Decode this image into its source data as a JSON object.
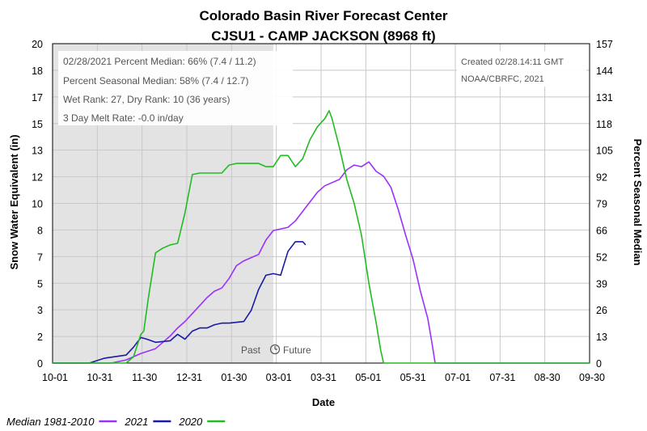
{
  "chart_data": {
    "type": "line",
    "title": "Colorado Basin River Forecast Center",
    "subtitle": "CJSU1 - CAMP JACKSON (8968 ft)",
    "xlabel": "Date",
    "ylabel": "Snow Water Equivalent (in)",
    "y2label": "Percent Seasonal Median",
    "x_ticks": [
      "10-01",
      "10-31",
      "11-30",
      "12-31",
      "01-30",
      "03-01",
      "03-31",
      "05-01",
      "05-31",
      "07-01",
      "07-31",
      "08-30",
      "09-30"
    ],
    "y_ticks": [
      "0",
      "2",
      "3",
      "5",
      "7",
      "8",
      "10",
      "12",
      "13",
      "15",
      "17",
      "18",
      "20"
    ],
    "y2_ticks": [
      "0",
      "13",
      "26",
      "39",
      "52",
      "66",
      "79",
      "92",
      "105",
      "118",
      "131",
      "144",
      "157"
    ],
    "ylim": [
      0,
      20
    ],
    "y2lim": [
      0,
      157
    ],
    "grid": true,
    "shaded_region": "past",
    "past_label": "Past",
    "future_label": "Future",
    "info_lines": [
      "02/28/2021 Percent Median: 66% (7.4 / 11.2)",
      "Percent Seasonal Median: 58% (7.4 / 12.7)",
      "Wet Rank: 27, Dry Rank: 10  (36 years)",
      "3 Day Melt Rate: -0.0 in/day"
    ],
    "created_lines": [
      "Created 02/28.14:11 GMT",
      "NOAA/CBRFC, 2021"
    ],
    "legend": {
      "placement": "bottom-left"
    },
    "series": [
      {
        "name": "Median 1981-2010",
        "color": "#9b30ff",
        "points": [
          [
            0,
            0
          ],
          [
            40,
            0
          ],
          [
            50,
            0.2
          ],
          [
            60,
            0.6
          ],
          [
            70,
            0.9
          ],
          [
            75,
            1.3
          ],
          [
            80,
            1.7
          ],
          [
            85,
            2.2
          ],
          [
            90,
            2.6
          ],
          [
            95,
            3.1
          ],
          [
            100,
            3.6
          ],
          [
            105,
            4.1
          ],
          [
            110,
            4.5
          ],
          [
            115,
            4.7
          ],
          [
            120,
            5.3
          ],
          [
            125,
            6.1
          ],
          [
            130,
            6.4
          ],
          [
            135,
            6.6
          ],
          [
            140,
            6.8
          ],
          [
            145,
            7.7
          ],
          [
            150,
            8.3
          ],
          [
            155,
            8.4
          ],
          [
            160,
            8.5
          ],
          [
            165,
            8.9
          ],
          [
            170,
            9.5
          ],
          [
            175,
            10.1
          ],
          [
            180,
            10.7
          ],
          [
            185,
            11.1
          ],
          [
            190,
            11.3
          ],
          [
            195,
            11.5
          ],
          [
            200,
            12.1
          ],
          [
            205,
            12.4
          ],
          [
            210,
            12.3
          ],
          [
            215,
            12.6
          ],
          [
            220,
            12.0
          ],
          [
            225,
            11.7
          ],
          [
            230,
            11.0
          ],
          [
            235,
            9.6
          ],
          [
            240,
            8.0
          ],
          [
            245,
            6.5
          ],
          [
            250,
            4.5
          ],
          [
            255,
            2.8
          ],
          [
            258,
            1.2
          ],
          [
            260,
            0
          ],
          [
            365,
            0
          ]
        ]
      },
      {
        "name": "2021",
        "color": "#1a1aa6",
        "points": [
          [
            0,
            0
          ],
          [
            25,
            0
          ],
          [
            35,
            0.3
          ],
          [
            50,
            0.5
          ],
          [
            55,
            1.0
          ],
          [
            60,
            1.6
          ],
          [
            64,
            1.5
          ],
          [
            70,
            1.3
          ],
          [
            80,
            1.4
          ],
          [
            85,
            1.8
          ],
          [
            90,
            1.5
          ],
          [
            95,
            2.0
          ],
          [
            100,
            2.2
          ],
          [
            105,
            2.2
          ],
          [
            110,
            2.4
          ],
          [
            115,
            2.5
          ],
          [
            120,
            2.5
          ],
          [
            130,
            2.6
          ],
          [
            135,
            3.3
          ],
          [
            140,
            4.6
          ],
          [
            145,
            5.5
          ],
          [
            150,
            5.6
          ],
          [
            155,
            5.5
          ],
          [
            160,
            7.0
          ],
          [
            165,
            7.6
          ],
          [
            170,
            7.6
          ],
          [
            172,
            7.4
          ]
        ]
      },
      {
        "name": "2020",
        "color": "#22bb22",
        "points": [
          [
            0,
            0
          ],
          [
            50,
            0
          ],
          [
            55,
            0.4
          ],
          [
            60,
            1.8
          ],
          [
            62,
            2.0
          ],
          [
            65,
            4.0
          ],
          [
            70,
            6.9
          ],
          [
            75,
            7.2
          ],
          [
            80,
            7.4
          ],
          [
            85,
            7.5
          ],
          [
            90,
            9.4
          ],
          [
            95,
            11.8
          ],
          [
            100,
            11.9
          ],
          [
            105,
            11.9
          ],
          [
            110,
            11.9
          ],
          [
            115,
            11.9
          ],
          [
            120,
            12.4
          ],
          [
            125,
            12.5
          ],
          [
            130,
            12.5
          ],
          [
            135,
            12.5
          ],
          [
            140,
            12.5
          ],
          [
            145,
            12.3
          ],
          [
            150,
            12.3
          ],
          [
            155,
            13.0
          ],
          [
            160,
            13.0
          ],
          [
            165,
            12.3
          ],
          [
            170,
            12.8
          ],
          [
            175,
            14.0
          ],
          [
            180,
            14.8
          ],
          [
            185,
            15.3
          ],
          [
            188,
            15.8
          ],
          [
            190,
            15.3
          ],
          [
            195,
            13.5
          ],
          [
            200,
            11.5
          ],
          [
            205,
            10.0
          ],
          [
            210,
            8.0
          ],
          [
            215,
            5.0
          ],
          [
            220,
            2.5
          ],
          [
            223,
            0.8
          ],
          [
            225,
            0
          ],
          [
            365,
            0
          ]
        ]
      }
    ]
  }
}
